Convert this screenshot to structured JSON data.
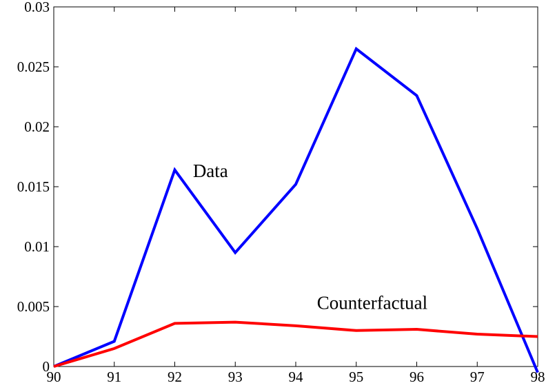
{
  "chart_data": {
    "type": "line",
    "x": [
      90,
      91,
      92,
      93,
      94,
      95,
      96,
      97,
      98
    ],
    "xlim": [
      90,
      98
    ],
    "ylim": [
      0,
      0.03
    ],
    "xticks": [
      "90",
      "91",
      "92",
      "93",
      "94",
      "95",
      "96",
      "97",
      "98"
    ],
    "yticks": [
      "0",
      "0.005",
      "0.01",
      "0.015",
      "0.02",
      "0.025",
      "0.03"
    ],
    "grid": false,
    "series": [
      {
        "name": "Data",
        "color": "#0000ff",
        "values": [
          0,
          0.0021,
          0.0164,
          0.0095,
          0.0152,
          0.0265,
          0.0226,
          0.0115,
          -0.0005
        ]
      },
      {
        "name": "Counterfactual",
        "color": "#ff0000",
        "values": [
          0,
          0.0015,
          0.0036,
          0.0037,
          0.0034,
          0.003,
          0.0031,
          0.0027,
          0.0025
        ]
      }
    ],
    "annotations": [
      {
        "text": "Data",
        "x": 92.3,
        "y": 0.0158
      },
      {
        "text": "Counterfactual",
        "x": 94.35,
        "y": 0.0048
      }
    ]
  }
}
